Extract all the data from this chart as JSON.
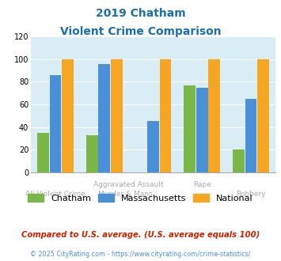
{
  "title_line1": "2019 Chatham",
  "title_line2": "Violent Crime Comparison",
  "categories": [
    "All Violent Crime",
    "Aggravated Assault",
    "Murder & Mans...",
    "Rape",
    "Robbery"
  ],
  "chatham": [
    35,
    33,
    0,
    77,
    20
  ],
  "massachusetts": [
    86,
    96,
    45,
    75,
    65
  ],
  "national": [
    100,
    100,
    100,
    100,
    100
  ],
  "chatham_color": "#7ab648",
  "massachusetts_color": "#4a90d9",
  "national_color": "#f5a623",
  "ylim": [
    0,
    120
  ],
  "yticks": [
    0,
    20,
    40,
    60,
    80,
    100,
    120
  ],
  "plot_bg": "#d9edf5",
  "footnote1": "Compared to U.S. average. (U.S. average equals 100)",
  "footnote2": "© 2025 CityRating.com - https://www.cityrating.com/crime-statistics/",
  "title_color": "#1a6fad",
  "footnote1_color": "#cc2200",
  "footnote2_color": "#4a90d9",
  "xlabel_color": "#aaaaaa",
  "grid_color": "#ffffff"
}
